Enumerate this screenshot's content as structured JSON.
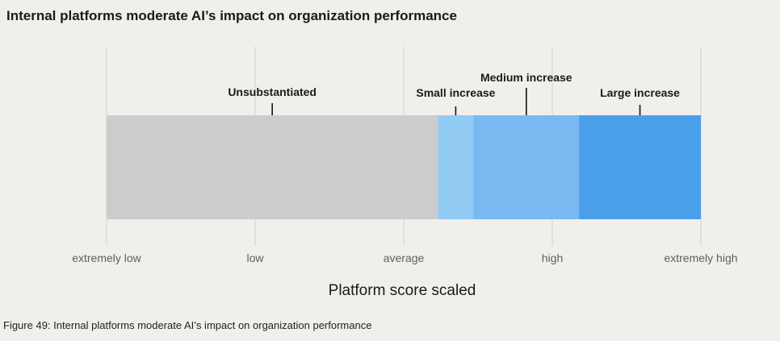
{
  "title": "Internal platforms moderate AI’s impact on organization performance",
  "caption": "Figure 49: Internal platforms moderate AI’s impact on organization performance",
  "chart_data": {
    "type": "bar",
    "orientation": "horizontal",
    "xlabel": "Platform score scaled",
    "ticks": [
      "extremely low",
      "low",
      "average",
      "high",
      "extremely high"
    ],
    "xlim": [
      0,
      4
    ],
    "grid": true,
    "segments": [
      {
        "label": "Unsubstantiated",
        "start": 0.0,
        "end": 2.23,
        "color": "#cccccc"
      },
      {
        "label": "Small increase",
        "start": 2.23,
        "end": 2.47,
        "color": "#91caf2"
      },
      {
        "label": "Medium increase",
        "start": 2.47,
        "end": 3.18,
        "color": "#7ab8f1"
      },
      {
        "label": "Large increase",
        "start": 3.18,
        "end": 4.0,
        "color": "#4a9fea"
      }
    ]
  }
}
